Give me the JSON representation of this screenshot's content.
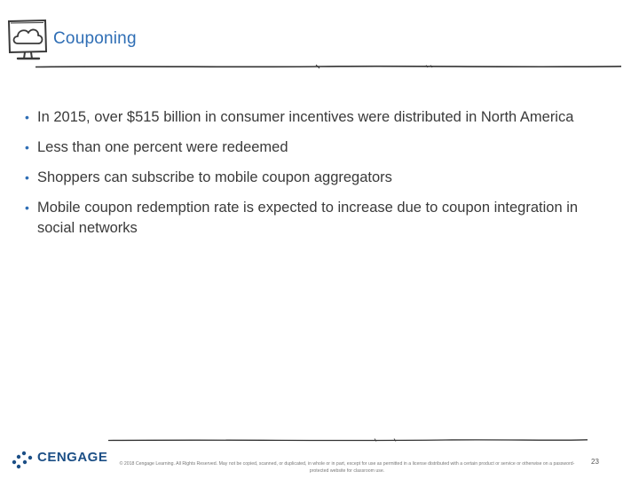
{
  "slide": {
    "title": "Couponing",
    "bullets": [
      "In 2015, over $515 billion in consumer incentives were distributed in North America",
      "Less than one percent were redeemed",
      "Shoppers can subscribe to mobile coupon aggregators",
      "Mobile coupon redemption rate is expected to increase due to coupon integration in social networks"
    ]
  },
  "footer": {
    "logo_text": "CENGAGE",
    "copyright": "© 2018 Cengage Learning. All Rights Reserved. May not be copied, scanned, or duplicated, in whole or in part, except for use as permitted in a license distributed with a certain product or service or otherwise on a password-protected website for classroom use.",
    "page_number": "23"
  },
  "icons": {
    "header": "cloud-monitor-icon",
    "logo": "cengage-logo-mark"
  },
  "colors": {
    "title": "#2f6eb5",
    "logo": "#1c4f86",
    "rule": "#333333"
  }
}
